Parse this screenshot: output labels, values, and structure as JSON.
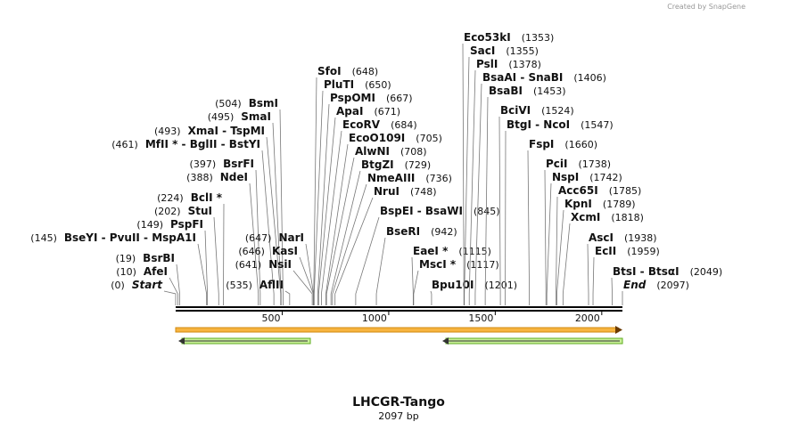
{
  "header": {
    "credit": "Created by SnapGene"
  },
  "map": {
    "title": "LHCGR-Tango",
    "subtitle": "2097 bp",
    "ticks": [
      500,
      1000,
      1500,
      2000
    ],
    "sites": [
      {
        "name": "Start",
        "pos": {
          "value": 0,
          "label": "(0)"
        }
      },
      {
        "name": "AfeI",
        "pos": {
          "value": 10,
          "label": "(10)"
        }
      },
      {
        "name": "BsrBI",
        "pos": {
          "value": 19,
          "label": "(19)"
        }
      },
      {
        "name": "BseYI  -  PvuII  -  MspA1I",
        "pos": {
          "value": 145,
          "label": "(145)"
        }
      },
      {
        "name": "PspFI",
        "pos": {
          "value": 149,
          "label": "(149)"
        }
      },
      {
        "name": "StuI",
        "pos": {
          "value": 202,
          "label": "(202)"
        }
      },
      {
        "name": "BclI *",
        "pos": {
          "value": 224,
          "label": "(224)"
        }
      },
      {
        "name": "NdeI",
        "pos": {
          "value": 388,
          "label": "(388)"
        }
      },
      {
        "name": "BsrFI",
        "pos": {
          "value": 397,
          "label": "(397)"
        }
      },
      {
        "name": "MfII * - BglII - BstYI",
        "pos": {
          "value": 461,
          "label": "(461)"
        }
      },
      {
        "name": "XmaI  - TspMI",
        "pos": {
          "value": 493,
          "label": "(493)"
        }
      },
      {
        "name": "SmaI",
        "pos": {
          "value": 495,
          "label": "(495)"
        }
      },
      {
        "name": "BsmI",
        "pos": {
          "value": 504,
          "label": "(504)"
        }
      },
      {
        "name": "AflII",
        "pos": {
          "value": 535,
          "label": "(535)"
        }
      },
      {
        "name": "NsiI",
        "pos": {
          "value": 641,
          "label": "(641)"
        }
      },
      {
        "name": "KasI",
        "pos": {
          "value": 646,
          "label": "(646)"
        }
      },
      {
        "name": "NarI",
        "pos": {
          "value": 647,
          "label": "(647)"
        }
      },
      {
        "name": "SfoI",
        "pos": {
          "value": 648,
          "label": "(648)"
        }
      },
      {
        "name": "PluTI",
        "pos": {
          "value": 650,
          "label": "(650)"
        }
      },
      {
        "name": "PspOMI",
        "pos": {
          "value": 667,
          "label": "(667)"
        }
      },
      {
        "name": "ApaI",
        "pos": {
          "value": 671,
          "label": "(671)"
        }
      },
      {
        "name": "EcoRV",
        "pos": {
          "value": 684,
          "label": "(684)"
        }
      },
      {
        "name": "EcoO109I",
        "pos": {
          "value": 705,
          "label": "(705)"
        }
      },
      {
        "name": "AlwNI",
        "pos": {
          "value": 708,
          "label": "(708)"
        }
      },
      {
        "name": "BtgZI",
        "pos": {
          "value": 729,
          "label": "(729)"
        }
      },
      {
        "name": "NmeAIII",
        "pos": {
          "value": 736,
          "label": "(736)"
        }
      },
      {
        "name": "NruI",
        "pos": {
          "value": 748,
          "label": "(748)"
        }
      },
      {
        "name": "BspEI  -  BsaWI",
        "pos": {
          "value": 845,
          "label": "(845)"
        }
      },
      {
        "name": "BseRI",
        "pos": {
          "value": 942,
          "label": "(942)"
        }
      },
      {
        "name": "EaeI *",
        "pos": {
          "value": 1115,
          "label": "(1115)"
        }
      },
      {
        "name": "MscI *",
        "pos": {
          "value": 1117,
          "label": "(1117)"
        }
      },
      {
        "name": "Bpu10I",
        "pos": {
          "value": 1201,
          "label": "(1201)"
        }
      },
      {
        "name": "Eco53kI",
        "pos": {
          "value": 1353,
          "label": "(1353)"
        }
      },
      {
        "name": "SacI",
        "pos": {
          "value": 1355,
          "label": "(1355)"
        }
      },
      {
        "name": "PslI",
        "pos": {
          "value": 1378,
          "label": "(1378)"
        }
      },
      {
        "name": "BsaAI  -  SnaBI",
        "pos": {
          "value": 1406,
          "label": "(1406)"
        }
      },
      {
        "name": "BsaBI",
        "pos": {
          "value": 1453,
          "label": "(1453)"
        }
      },
      {
        "name": "BciVI",
        "pos": {
          "value": 1524,
          "label": "(1524)"
        }
      },
      {
        "name": "BtgI  -  NcoI",
        "pos": {
          "value": 1547,
          "label": "(1547)"
        }
      },
      {
        "name": "FspI",
        "pos": {
          "value": 1660,
          "label": "(1660)"
        }
      },
      {
        "name": "PciI",
        "pos": {
          "value": 1738,
          "label": "(1738)"
        }
      },
      {
        "name": "NspI",
        "pos": {
          "value": 1742,
          "label": "(1742)"
        }
      },
      {
        "name": "Acc65I",
        "pos": {
          "value": 1785,
          "label": "(1785)"
        }
      },
      {
        "name": "KpnI",
        "pos": {
          "value": 1789,
          "label": "(1789)"
        }
      },
      {
        "name": "XcmI",
        "pos": {
          "value": 1818,
          "label": "(1818)"
        }
      },
      {
        "name": "AscI",
        "pos": {
          "value": 1938,
          "label": "(1938)"
        }
      },
      {
        "name": "EcII",
        "pos": {
          "value": 1959,
          "label": "(1959)"
        }
      },
      {
        "name": "BtsI  -  BtsαI",
        "pos": {
          "value": 2049,
          "label": "(2049)"
        }
      },
      {
        "name": "End",
        "pos": {
          "value": 2097,
          "label": "(2097)"
        }
      }
    ]
  }
}
